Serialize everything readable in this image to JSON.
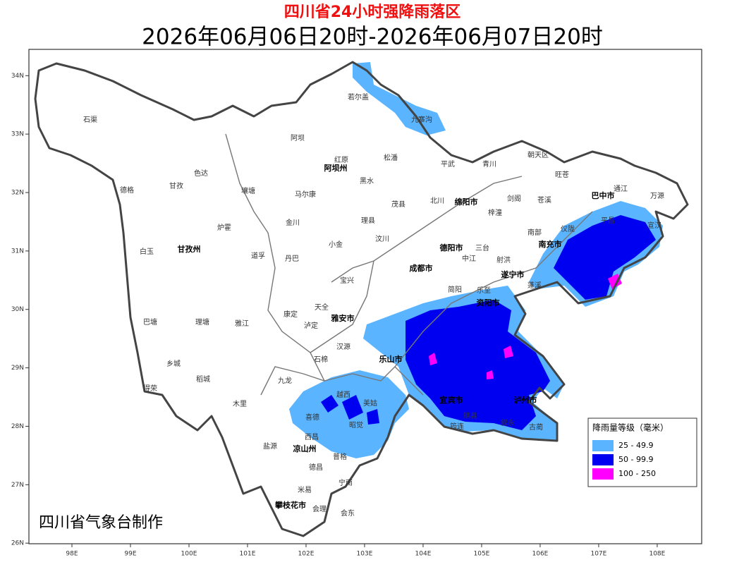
{
  "title": "四川省24小时强降雨落区",
  "subtitle": "2026年06月06日20时-2026年06月07日20时",
  "credit": "四川省气象台制作",
  "map": {
    "xlim": [
      97.265,
      108.76
    ],
    "ylim": [
      25.99,
      34.45
    ],
    "xticks": [
      {
        "value": 98,
        "label": "98E"
      },
      {
        "value": 99,
        "label": "99E"
      },
      {
        "value": 100,
        "label": "100E"
      },
      {
        "value": 101,
        "label": "101E"
      },
      {
        "value": 102,
        "label": "102E"
      },
      {
        "value": 103,
        "label": "103E"
      },
      {
        "value": 104,
        "label": "104E"
      },
      {
        "value": 105,
        "label": "105E"
      },
      {
        "value": 106,
        "label": "106E"
      },
      {
        "value": 107,
        "label": "107E"
      },
      {
        "value": 108,
        "label": "108E"
      }
    ],
    "yticks": [
      {
        "value": 26,
        "label": "26N"
      },
      {
        "value": 27,
        "label": "27N"
      },
      {
        "value": 28,
        "label": "28N"
      },
      {
        "value": 29,
        "label": "29N"
      },
      {
        "value": 30,
        "label": "30N"
      },
      {
        "value": 31,
        "label": "31N"
      },
      {
        "value": 32,
        "label": "32N"
      },
      {
        "value": 33,
        "label": "33N"
      },
      {
        "value": 34,
        "label": "34N"
      }
    ],
    "places": [
      "石渠",
      "色达",
      "德格",
      "甘孜",
      "炉霍",
      "白玉",
      "甘孜州",
      "道孚",
      "丹巴",
      "巴塘",
      "理塘",
      "雅江",
      "康定",
      "泸定",
      "乡城",
      "稻城",
      "得荣",
      "九龙",
      "木里",
      "阿坝",
      "红原",
      "阿坝州",
      "壤塘",
      "马尔康",
      "黑水",
      "金川",
      "理县",
      "小金",
      "汶川",
      "茂县",
      "松潘",
      "九寨沟",
      "若尔盖",
      "平武",
      "青川",
      "北川",
      "绵阳市",
      "巴中市",
      "通江",
      "万源",
      "南充市",
      "遂宁市",
      "成都市",
      "德阳市",
      "雅安市",
      "乐山市",
      "资阳市",
      "宜宾市",
      "泸州市",
      "凉山州",
      "西昌",
      "盐源",
      "德昌",
      "会理",
      "会东",
      "宁南",
      "攀枝花市",
      "米易",
      "普格",
      "昭觉",
      "美姑",
      "越西",
      "喜德",
      "石棉",
      "汉源",
      "天全",
      "宝兴",
      "平昌",
      "宣汉",
      "苍溪",
      "旺苍",
      "朝天区",
      "剑阁",
      "梓潼",
      "三台",
      "中江",
      "射洪",
      "简阳",
      "乐至",
      "古蔺",
      "叙永",
      "珙县",
      "筠连",
      "南部",
      "仪陇",
      "蓬溪"
    ]
  },
  "legend": {
    "title": "降雨量等级（毫米）",
    "items": [
      {
        "label": "25 - 49.9",
        "color": "#5ab4ff"
      },
      {
        "label": "50 - 99.9",
        "color": "#0000f0"
      },
      {
        "label": "100 - 250",
        "color": "#ff00ff"
      }
    ]
  }
}
